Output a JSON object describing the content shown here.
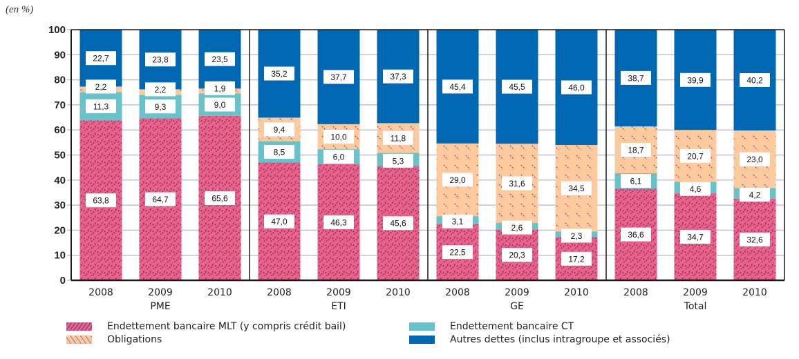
{
  "unit_label": "(en %)",
  "chart_data": {
    "type": "bar",
    "stacked": true,
    "title": "",
    "xlabel": "",
    "ylabel": "(en %)",
    "ylim": [
      0,
      100
    ],
    "yticks": [
      0,
      10,
      20,
      30,
      40,
      50,
      60,
      70,
      80,
      90,
      100
    ],
    "grid": true,
    "groups": [
      {
        "name": "PME",
        "categories": [
          "2008",
          "2009",
          "2010"
        ]
      },
      {
        "name": "ETI",
        "categories": [
          "2008",
          "2009",
          "2010"
        ]
      },
      {
        "name": "GE",
        "categories": [
          "2008",
          "2009",
          "2010"
        ]
      },
      {
        "name": "Total",
        "categories": [
          "2008",
          "2009",
          "2010"
        ]
      }
    ],
    "categories": [
      "PME 2008",
      "PME 2009",
      "PME 2010",
      "ETI 2008",
      "ETI 2009",
      "ETI 2010",
      "GE 2008",
      "GE 2009",
      "GE 2010",
      "Total 2008",
      "Total 2009",
      "Total 2010"
    ],
    "series": [
      {
        "name": "Endettement bancaire MLT (y compris crédit bail)",
        "color": "#e8648a",
        "pattern": "hatch-forward",
        "values": [
          63.8,
          64.7,
          65.6,
          47.0,
          46.3,
          45.6,
          22.5,
          20.3,
          17.2,
          36.6,
          34.7,
          32.6
        ],
        "labels": [
          "63,8",
          "64,7",
          "65,6",
          "47,0",
          "46,3",
          "45,6",
          "22,5",
          "20,3",
          "17,2",
          "36,6",
          "34,7",
          "32,6"
        ]
      },
      {
        "name": "Endettement bancaire CT",
        "color": "#67c3c9",
        "pattern": "solid",
        "values": [
          11.3,
          9.3,
          9.0,
          8.5,
          6.0,
          5.3,
          3.1,
          2.6,
          2.3,
          6.1,
          4.6,
          4.2
        ],
        "labels": [
          "11,3",
          "9,3",
          "9,0",
          "8,5",
          "6,0",
          "5,3",
          "3,1",
          "2,6",
          "2,3",
          "6,1",
          "4,6",
          "4,2"
        ]
      },
      {
        "name": "Obligations",
        "color": "#fccb9d",
        "pattern": "hatch-back",
        "values": [
          2.2,
          2.2,
          1.9,
          9.4,
          10.0,
          11.8,
          29.0,
          31.6,
          34.5,
          18.7,
          20.7,
          23.0
        ],
        "labels": [
          "2,2",
          "2,2",
          "1,9",
          "9,4",
          "10,0",
          "11,8",
          "29,0",
          "31,6",
          "34,5",
          "18,7",
          "20,7",
          "23,0"
        ]
      },
      {
        "name": "Autres dettes (inclus intragroupe et associés)",
        "color": "#0068b3",
        "pattern": "solid",
        "values": [
          22.7,
          23.8,
          23.5,
          35.2,
          37.7,
          37.3,
          45.4,
          45.5,
          46.0,
          38.7,
          39.9,
          40.2
        ],
        "labels": [
          "22,7",
          "23,8",
          "23,5",
          "35,2",
          "37,7",
          "37,3",
          "45,4",
          "45,5",
          "46,0",
          "38,7",
          "39,9",
          "40,2"
        ]
      }
    ],
    "legend": {
      "placement": "bottom",
      "items": [
        {
          "label": "Endettement bancaire MLT (y compris crédit bail)",
          "series": 0
        },
        {
          "label": "Endettement bancaire CT",
          "series": 1
        },
        {
          "label": "Obligations",
          "series": 2
        },
        {
          "label": "Autres dettes (inclus intragroupe et associés)",
          "series": 3
        }
      ]
    }
  }
}
